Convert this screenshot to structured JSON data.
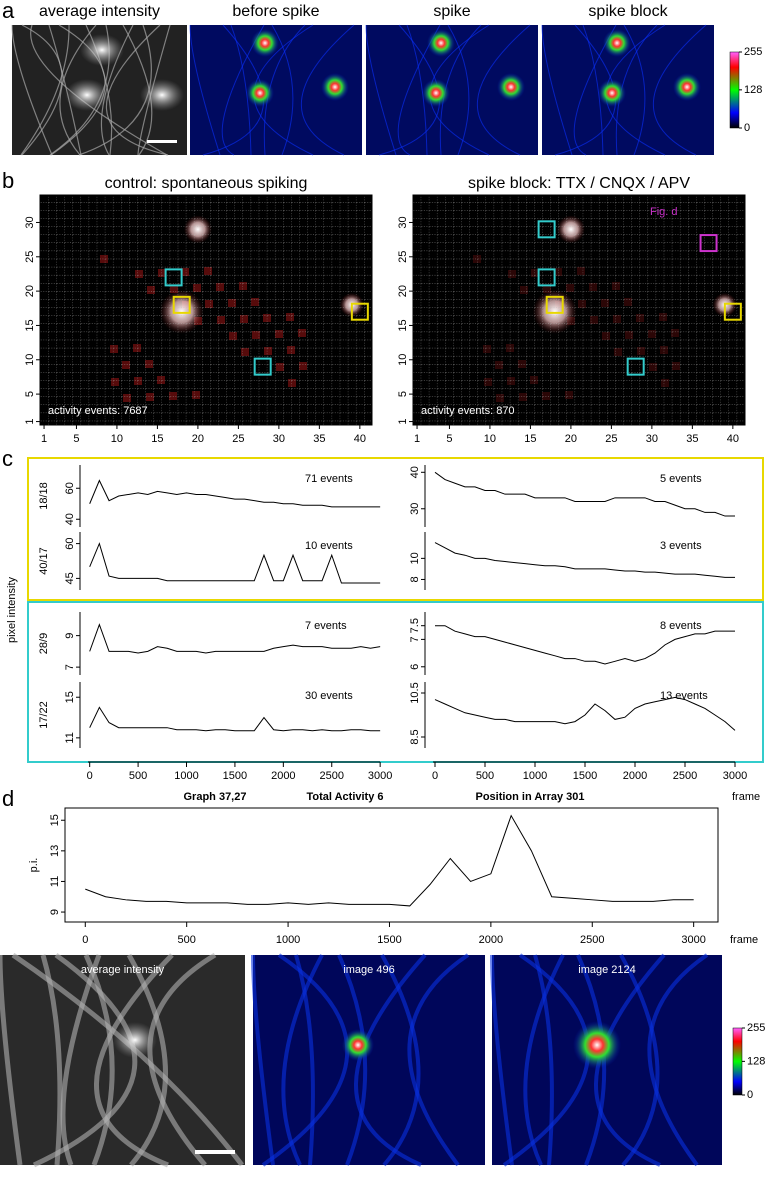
{
  "panel_a": {
    "label": "a",
    "images": [
      "average intensity",
      "before spike",
      "spike",
      "spike block"
    ],
    "colorbar": {
      "clim": [
        0,
        255
      ],
      "ticks": [
        255,
        128,
        0
      ]
    }
  },
  "panel_b": {
    "label": "b",
    "xlim": [
      0.5,
      41.5
    ],
    "ylim": [
      0.5,
      34
    ],
    "xticks": [
      1,
      5,
      10,
      15,
      20,
      25,
      30,
      35,
      40
    ],
    "yticks": [
      1,
      5,
      10,
      15,
      20,
      25,
      30
    ],
    "maps": [
      {
        "title": "control: spontaneous spiking",
        "events": "activity events: 7687",
        "boxes": [
          {
            "x": 17,
            "y": 22,
            "color": "#33cccc"
          },
          {
            "x": 18,
            "y": 18,
            "color": "#e8d800"
          },
          {
            "x": 40,
            "y": 17,
            "color": "#e8d800"
          },
          {
            "x": 28,
            "y": 9,
            "color": "#33cccc"
          }
        ]
      },
      {
        "title": "spike block: TTX / CNQX / APV",
        "events": "activity events: 870",
        "annotation": "Fig. d",
        "boxes": [
          {
            "x": 17,
            "y": 29,
            "color": "#33cccc"
          },
          {
            "x": 17,
            "y": 22,
            "color": "#33cccc"
          },
          {
            "x": 18,
            "y": 18,
            "color": "#e8d800"
          },
          {
            "x": 40,
            "y": 17,
            "color": "#e8d800"
          },
          {
            "x": 28,
            "y": 9,
            "color": "#33cccc"
          },
          {
            "x": 37,
            "y": 27,
            "color": "#cc33cc"
          }
        ]
      }
    ]
  },
  "panel_c": {
    "label": "c",
    "ylabel": "pixel intensity",
    "xlabel": "frame",
    "x": [
      0,
      100,
      200,
      300,
      400,
      500,
      600,
      700,
      800,
      900,
      1000,
      1100,
      1200,
      1300,
      1400,
      1500,
      1600,
      1700,
      1800,
      1900,
      2000,
      2100,
      2200,
      2300,
      2400,
      2500,
      2600,
      2700,
      2800,
      2900,
      3000
    ],
    "xlim": [
      -100,
      3050
    ],
    "xticks": [
      0,
      500,
      1000,
      1500,
      2000,
      2500,
      3000
    ],
    "rows": [
      {
        "name": "18/18",
        "traces": [
          {
            "events": "71 events",
            "ylim": [
              35,
              75
            ],
            "yticks": [
              40,
              60
            ],
            "values": [
              50,
              65,
              52,
              55,
              56,
              57,
              56,
              58,
              57,
              56,
              57,
              56,
              56,
              55,
              54,
              53,
              53,
              52,
              51,
              51,
              50,
              50,
              49,
              49,
              49,
              48,
              48,
              48,
              48,
              48,
              48
            ]
          },
          {
            "events": "5 events",
            "ylim": [
              25,
              42
            ],
            "yticks": [
              30,
              40
            ],
            "values": [
              40,
              38,
              37,
              36,
              36,
              35,
              35,
              34,
              34,
              34,
              33,
              33,
              33,
              33,
              32,
              32,
              32,
              32,
              33,
              33,
              33,
              33,
              32,
              32,
              31,
              30,
              30,
              29,
              29,
              28,
              28
            ]
          }
        ]
      },
      {
        "name": "40/17",
        "traces": [
          {
            "events": "10 events",
            "ylim": [
              40,
              65
            ],
            "yticks": [
              45,
              60
            ],
            "values": [
              50,
              60,
              46,
              45,
              45,
              45,
              45,
              45,
              44,
              44,
              44,
              44,
              44,
              44,
              44,
              44,
              44,
              44,
              55,
              44,
              44,
              55,
              44,
              44,
              44,
              55,
              43,
              43,
              43,
              43,
              43
            ]
          },
          {
            "events": "3 events",
            "ylim": [
              7,
              12.5
            ],
            "yticks": [
              8,
              10
            ],
            "values": [
              11.5,
              11,
              10.5,
              10.3,
              10,
              10,
              9.8,
              9.7,
              9.6,
              9.5,
              9.4,
              9.3,
              9.3,
              9.2,
              9,
              9,
              9,
              9,
              8.9,
              8.8,
              8.8,
              8.7,
              8.7,
              8.6,
              8.5,
              8.5,
              8.5,
              8.4,
              8.3,
              8.2,
              8.2
            ]
          }
        ]
      },
      {
        "name": "28/9",
        "traces": [
          {
            "events": "7 events",
            "ylim": [
              6.5,
              10.5
            ],
            "yticks": [
              7,
              9
            ],
            "values": [
              8,
              9.7,
              8,
              8,
              8,
              7.9,
              8,
              8.3,
              8.2,
              8,
              8,
              8,
              7.9,
              8,
              8,
              8,
              8,
              8,
              8,
              8.2,
              8.3,
              8.4,
              8.3,
              8.3,
              8.3,
              8.2,
              8.2,
              8.2,
              8.3,
              8.2,
              8.3
            ]
          },
          {
            "events": "8 events",
            "ylim": [
              5.7,
              8
            ],
            "yticks": [
              6,
              7,
              7.5
            ],
            "values": [
              7.5,
              7.5,
              7.3,
              7.2,
              7.1,
              7.1,
              7,
              6.9,
              6.8,
              6.7,
              6.6,
              6.5,
              6.4,
              6.3,
              6.3,
              6.2,
              6.2,
              6.1,
              6.2,
              6.3,
              6.2,
              6.3,
              6.5,
              6.8,
              7,
              7.1,
              7.2,
              7.2,
              7.3,
              7.3,
              7.3
            ]
          }
        ]
      },
      {
        "name": "17/22",
        "traces": [
          {
            "events": "30 events",
            "ylim": [
              10,
              16.5
            ],
            "yticks": [
              11,
              15
            ],
            "values": [
              12,
              14,
              12.5,
              12,
              12,
              12,
              12,
              12,
              12,
              11.8,
              11.8,
              11.8,
              11.7,
              11.8,
              11.8,
              11.7,
              11.7,
              11.7,
              13,
              11.8,
              11.7,
              11.8,
              11.8,
              11.7,
              11.8,
              11.7,
              11.7,
              11.8,
              11.8,
              11.7,
              11.7
            ]
          },
          {
            "events": "13 events",
            "ylim": [
              8,
              11
            ],
            "yticks": [
              8.5,
              10.5
            ],
            "values": [
              10.2,
              10,
              9.8,
              9.6,
              9.5,
              9.4,
              9.3,
              9.3,
              9.2,
              9.2,
              9.2,
              9.2,
              9.2,
              9.1,
              9.2,
              9.5,
              10,
              9.7,
              9.3,
              9.4,
              9.8,
              10,
              10.1,
              10.2,
              10.3,
              10.2,
              10,
              9.8,
              9.5,
              9.2,
              8.8
            ]
          }
        ]
      }
    ]
  },
  "panel_d": {
    "label": "d",
    "title_parts": [
      "Graph 37,27",
      "Total Activity 6",
      "Position in Array 301"
    ],
    "ylabel": "p.i.",
    "xlabel": "frame",
    "x": [
      0,
      100,
      200,
      300,
      400,
      500,
      600,
      700,
      800,
      900,
      1000,
      1100,
      1200,
      1300,
      1400,
      1500,
      1600,
      1700,
      1800,
      1900,
      2000,
      2100,
      2200,
      2300,
      2400,
      2500,
      2600,
      2700,
      2800,
      2900,
      3000
    ],
    "xlim": [
      -100,
      3120
    ],
    "xticks": [
      0,
      500,
      1000,
      1500,
      2000,
      2500,
      3000
    ],
    "ylim": [
      8.35,
      15.8
    ],
    "yticks": [
      9,
      11,
      13,
      15
    ],
    "values": [
      10.5,
      10,
      9.8,
      9.7,
      9.7,
      9.6,
      9.6,
      9.6,
      9.5,
      9.5,
      9.6,
      9.5,
      9.6,
      9.5,
      9.5,
      9.5,
      9.4,
      10.8,
      12.5,
      11,
      11.5,
      15.3,
      13,
      10,
      9.9,
      9.8,
      9.7,
      9.7,
      9.7,
      9.8,
      9.8
    ],
    "images": [
      "average intensity",
      "image 496",
      "image 2124"
    ],
    "colorbar": {
      "clim": [
        0,
        255
      ],
      "ticks": [
        255,
        128,
        0
      ]
    }
  }
}
